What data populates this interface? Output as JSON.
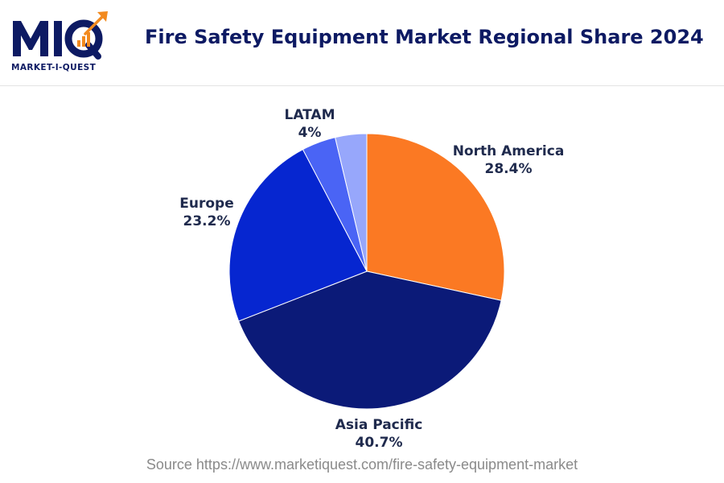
{
  "logo": {
    "letters": "MIQ",
    "tagline": "MARKET-I-QUEST"
  },
  "header": {
    "title": "Fire Safety Equipment Market Regional Share 2024"
  },
  "chart_data": {
    "type": "pie",
    "title": "Fire Safety Equipment Market Regional Share 2024",
    "slices": [
      {
        "label": "North America",
        "value": 28.4,
        "display": "28.4%",
        "color": "#fb7923"
      },
      {
        "label": "Asia Pacific",
        "value": 40.7,
        "display": "40.7%",
        "color": "#0b1a78"
      },
      {
        "label": "Europe",
        "value": 23.2,
        "display": "23.2%",
        "color": "#0626d0"
      },
      {
        "label": "LATAM",
        "value": 4,
        "display": "4%",
        "color": "#4a64f5"
      },
      {
        "label": "",
        "value": 3.7,
        "display": "",
        "color": "#97a7fb"
      }
    ]
  },
  "footer": {
    "source": "Source https://www.marketiquest.com/fire-safety-equipment-market"
  },
  "colors": {
    "brand_navy": "#0d1a63",
    "brand_orange": "#f28a1f"
  }
}
